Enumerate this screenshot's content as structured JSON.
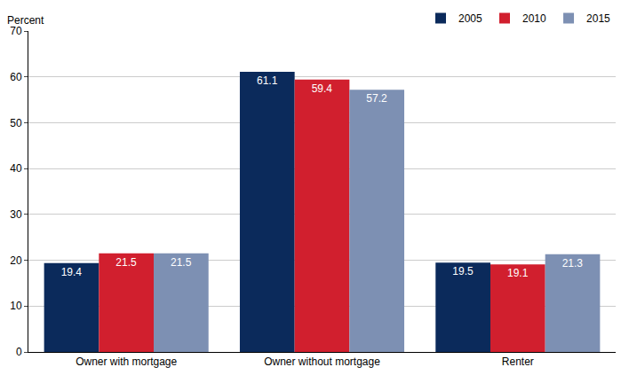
{
  "chart_data": {
    "type": "bar",
    "y_label": "Percent",
    "categories": [
      "Owner with mortgage",
      "Owner without mortgage",
      "Renter"
    ],
    "series": [
      {
        "name": "2005",
        "color": "#0b2a5b",
        "values": [
          19.4,
          61.1,
          19.5
        ]
      },
      {
        "name": "2010",
        "color": "#d11f2e",
        "values": [
          21.5,
          59.4,
          19.1
        ]
      },
      {
        "name": "2015",
        "color": "#7d90b3",
        "values": [
          21.5,
          57.2,
          21.3
        ]
      }
    ],
    "ylim": [
      0,
      70
    ],
    "yticks": [
      0,
      10,
      20,
      30,
      40,
      50,
      60,
      70
    ],
    "grid": true,
    "legend": "top-right",
    "data_labels": true
  }
}
